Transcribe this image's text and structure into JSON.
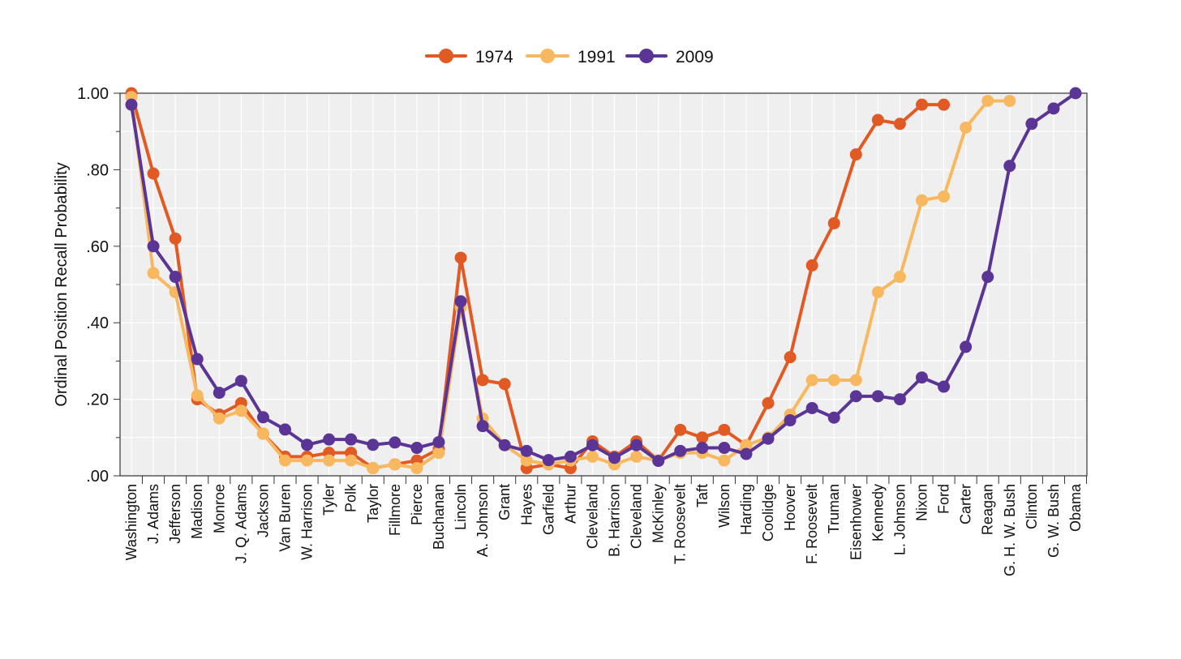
{
  "chart_data": {
    "type": "line",
    "ylabel": "Ordinal Position Recall Probability",
    "ylim": [
      0,
      1
    ],
    "yticks": [
      {
        "value": 0.0,
        "label": ".00"
      },
      {
        "value": 0.2,
        "label": ".20"
      },
      {
        "value": 0.4,
        "label": ".40"
      },
      {
        "value": 0.6,
        "label": ".60"
      },
      {
        "value": 0.8,
        "label": ".80"
      },
      {
        "value": 1.0,
        "label": "1.00"
      }
    ],
    "grid": true,
    "legend_position": "top-center",
    "categories": [
      "Washington",
      "J. Adams",
      "Jefferson",
      "Madison",
      "Monroe",
      "J. Q. Adams",
      "Jackson",
      "Van Buren",
      "W. Harrison",
      "Tyler",
      "Polk",
      "Taylor",
      "Fillmore",
      "Pierce",
      "Buchanan",
      "Lincoln",
      "A. Johnson",
      "Grant",
      "Hayes",
      "Garfield",
      "Arthur",
      "Cleveland",
      "B. Harrison",
      "Cleveland",
      "McKinley",
      "T. Roosevelt",
      "Taft",
      "Wilson",
      "Harding",
      "Coolidge",
      "Hoover",
      "F. Roosevelt",
      "Truman",
      "Eisenhower",
      "Kennedy",
      "L. Johnson",
      "Nixon",
      "Ford",
      "Carter",
      "Reagan",
      "G. H. W. Bush",
      "Clinton",
      "G. W. Bush",
      "Obama"
    ],
    "series": [
      {
        "name": "1974",
        "color": "#e15a24",
        "values": [
          1.0,
          0.79,
          0.62,
          0.2,
          0.16,
          0.19,
          0.11,
          0.05,
          0.05,
          0.06,
          0.06,
          0.02,
          0.03,
          0.04,
          0.07,
          0.57,
          0.25,
          0.24,
          0.02,
          0.03,
          0.02,
          0.09,
          0.05,
          0.09,
          0.04,
          0.12,
          0.1,
          0.12,
          0.08,
          0.19,
          0.31,
          0.55,
          0.66,
          0.84,
          0.93,
          0.92,
          0.97,
          0.97,
          null,
          null,
          null,
          null,
          null,
          null
        ]
      },
      {
        "name": "1991",
        "color": "#f7b860",
        "values": [
          0.99,
          0.53,
          0.48,
          0.21,
          0.15,
          0.17,
          0.11,
          0.04,
          0.04,
          0.04,
          0.04,
          0.02,
          0.03,
          0.02,
          0.06,
          0.44,
          0.15,
          0.08,
          0.04,
          0.03,
          0.04,
          0.05,
          0.03,
          0.05,
          0.04,
          0.06,
          0.06,
          0.04,
          0.08,
          0.1,
          0.16,
          0.25,
          0.25,
          0.25,
          0.48,
          0.52,
          0.72,
          0.73,
          0.91,
          0.98,
          0.98,
          null,
          null,
          null
        ]
      },
      {
        "name": "2009",
        "color": "#5b3595",
        "values": [
          0.97,
          0.6,
          0.52,
          0.305,
          0.217,
          0.248,
          0.153,
          0.121,
          0.081,
          0.095,
          0.095,
          0.081,
          0.087,
          0.073,
          0.088,
          0.456,
          0.13,
          0.08,
          0.065,
          0.041,
          0.05,
          0.08,
          0.047,
          0.08,
          0.039,
          0.065,
          0.073,
          0.073,
          0.057,
          0.097,
          0.145,
          0.177,
          0.152,
          0.208,
          0.208,
          0.2,
          0.257,
          0.233,
          0.337,
          0.52,
          0.81,
          0.92,
          0.96,
          1.0
        ]
      }
    ]
  }
}
